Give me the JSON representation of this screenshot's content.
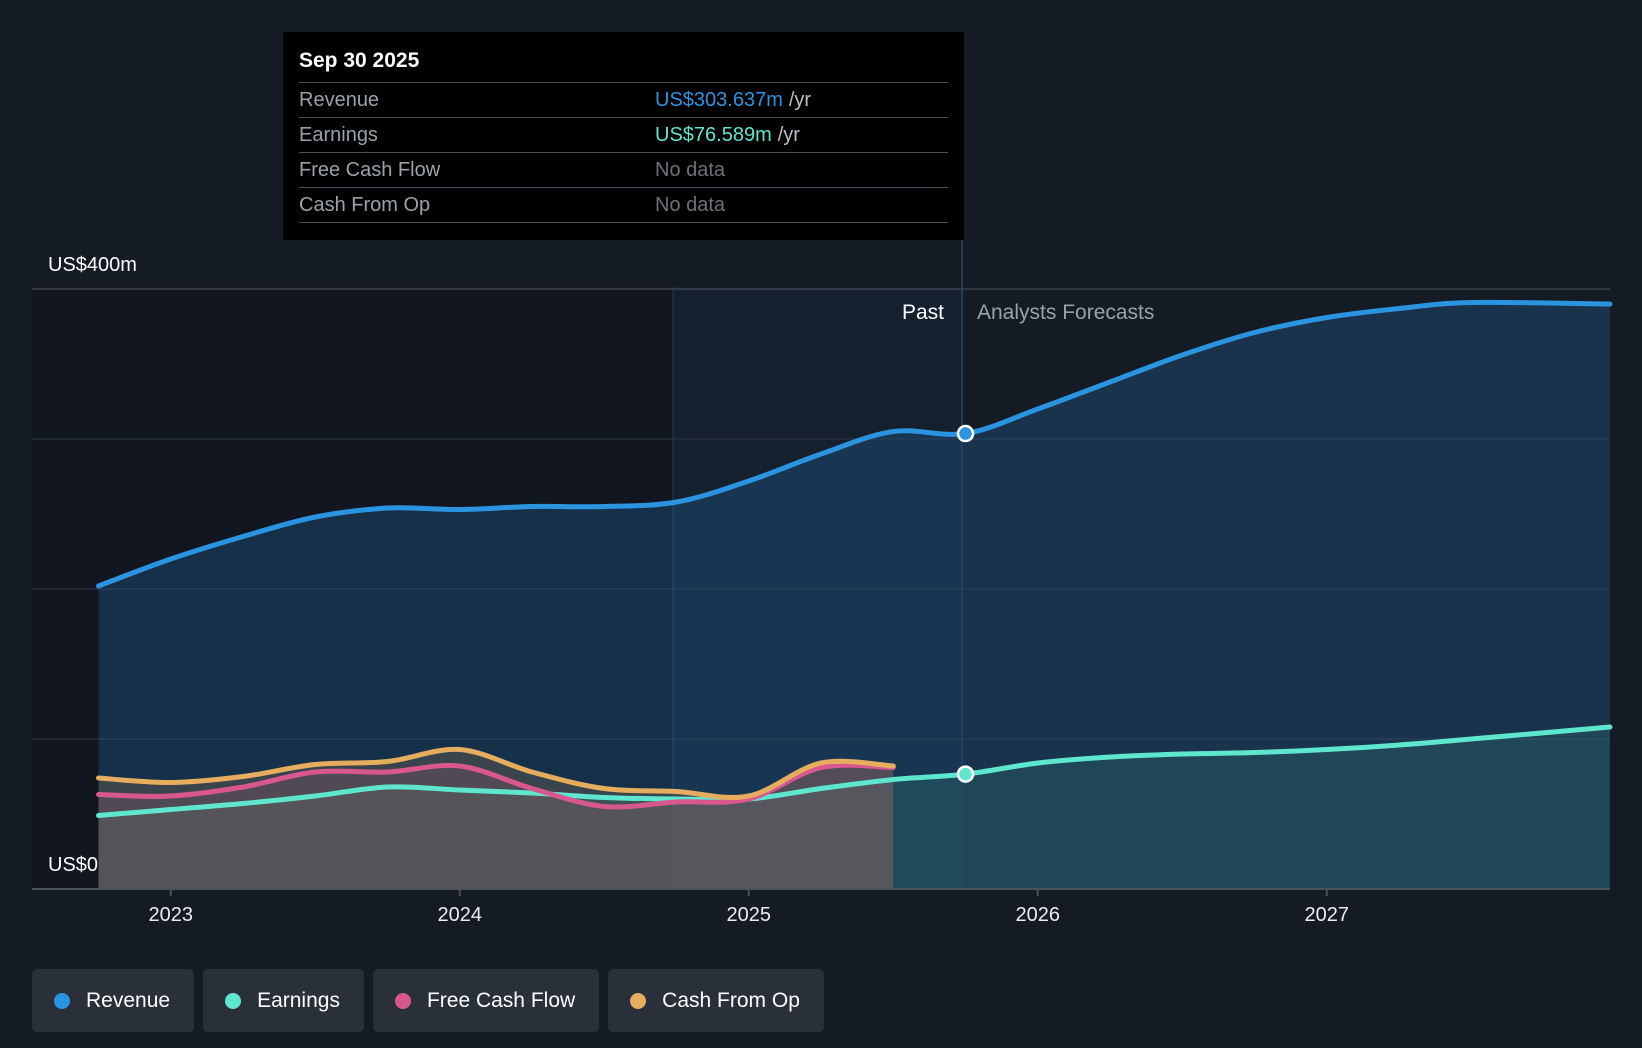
{
  "tooltip": {
    "date": "Sep 30 2025",
    "rows": [
      {
        "name": "Revenue",
        "value": "US$303.637m",
        "unit": "/yr",
        "color": "#2b94e0"
      },
      {
        "name": "Earnings",
        "value": "US$76.589m",
        "unit": "/yr",
        "color": "#5ee6cf"
      },
      {
        "name": "Free Cash Flow",
        "value": "No data",
        "unit": "",
        "color": "#6b7079"
      },
      {
        "name": "Cash From Op",
        "value": "No data",
        "unit": "",
        "color": "#6b7079"
      }
    ]
  },
  "legend": [
    {
      "label": "Revenue",
      "color": "#2b94e0"
    },
    {
      "label": "Earnings",
      "color": "#5ee6cf"
    },
    {
      "label": "Free Cash Flow",
      "color": "#d9578f"
    },
    {
      "label": "Cash From Op",
      "color": "#e6ad5f"
    }
  ],
  "chart_data": {
    "type": "area",
    "title": "",
    "xlabel": "",
    "ylabel": "",
    "x_ticks": [
      {
        "label": "2023",
        "x": 2023.0
      },
      {
        "label": "2024",
        "x": 2024.0
      },
      {
        "label": "2025",
        "x": 2025.0
      },
      {
        "label": "2026",
        "x": 2026.0
      },
      {
        "label": "2027",
        "x": 2027.0
      }
    ],
    "xlim": [
      2022.52,
      2027.98
    ],
    "ylim": [
      0,
      400
    ],
    "y_labels": {
      "top": "US$400m",
      "bottom": "US$0"
    },
    "y_gridlines": [
      0,
      100,
      200,
      300,
      400
    ],
    "past_label": "Past",
    "forecast_label": "Analysts Forecasts",
    "past_end": 2025.75,
    "shade_start": 2024.75,
    "series": [
      {
        "name": "Revenue",
        "color": "#2b94e0",
        "points": [
          [
            2022.75,
            202
          ],
          [
            2023.0,
            220
          ],
          [
            2023.25,
            235
          ],
          [
            2023.5,
            248
          ],
          [
            2023.75,
            254
          ],
          [
            2024.0,
            253
          ],
          [
            2024.25,
            255
          ],
          [
            2024.5,
            255
          ],
          [
            2024.75,
            258
          ],
          [
            2025.0,
            272
          ],
          [
            2025.25,
            290
          ],
          [
            2025.5,
            305
          ],
          [
            2025.75,
            303.637
          ],
          [
            2026.0,
            320
          ],
          [
            2026.25,
            338
          ],
          [
            2026.5,
            356
          ],
          [
            2026.75,
            371
          ],
          [
            2027.0,
            381
          ],
          [
            2027.25,
            387
          ],
          [
            2027.5,
            391
          ],
          [
            2027.98,
            390
          ]
        ]
      },
      {
        "name": "Earnings",
        "color": "#5ee6cf",
        "points": [
          [
            2022.75,
            49
          ],
          [
            2023.0,
            53
          ],
          [
            2023.25,
            57
          ],
          [
            2023.5,
            62
          ],
          [
            2023.75,
            68
          ],
          [
            2024.0,
            66
          ],
          [
            2024.25,
            64
          ],
          [
            2024.5,
            61
          ],
          [
            2024.75,
            60
          ],
          [
            2025.0,
            60
          ],
          [
            2025.25,
            67
          ],
          [
            2025.5,
            73
          ],
          [
            2025.75,
            76.589
          ],
          [
            2026.0,
            84
          ],
          [
            2026.25,
            88
          ],
          [
            2026.5,
            90
          ],
          [
            2026.75,
            91
          ],
          [
            2027.0,
            93
          ],
          [
            2027.25,
            96
          ],
          [
            2027.5,
            100
          ],
          [
            2027.98,
            108
          ]
        ]
      },
      {
        "name": "Free Cash Flow",
        "color": "#d9578f",
        "points": [
          [
            2022.75,
            63
          ],
          [
            2023.0,
            62
          ],
          [
            2023.25,
            68
          ],
          [
            2023.5,
            78
          ],
          [
            2023.75,
            78
          ],
          [
            2024.0,
            82
          ],
          [
            2024.25,
            67
          ],
          [
            2024.5,
            55
          ],
          [
            2024.75,
            58
          ],
          [
            2025.0,
            60
          ],
          [
            2025.25,
            81
          ],
          [
            2025.5,
            81
          ]
        ]
      },
      {
        "name": "Cash From Op",
        "color": "#e6ad5f",
        "points": [
          [
            2022.75,
            74
          ],
          [
            2023.0,
            71
          ],
          [
            2023.25,
            75
          ],
          [
            2023.5,
            83
          ],
          [
            2023.75,
            85
          ],
          [
            2024.0,
            93
          ],
          [
            2024.25,
            78
          ],
          [
            2024.5,
            67
          ],
          [
            2024.75,
            65
          ],
          [
            2025.0,
            62
          ],
          [
            2025.25,
            84
          ],
          [
            2025.5,
            82
          ]
        ]
      }
    ]
  }
}
